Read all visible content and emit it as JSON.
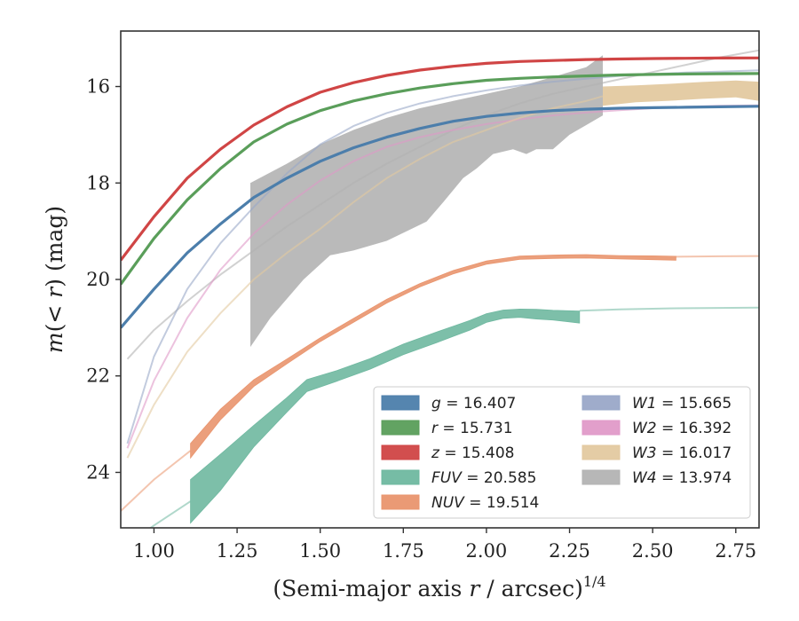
{
  "chart_data": {
    "type": "line",
    "xlabel": "(Semi-major axis r / arcsec)^1/4",
    "xlabel_parts": {
      "main": "(Semi-major axis ",
      "var": "r",
      "rest": " / arcsec)",
      "sup": "1/4"
    },
    "ylabel": "m(< r) (mag)",
    "ylabel_parts": {
      "var": "m",
      "paren_open": "(",
      "lt": "< ",
      "r": "r",
      "paren_close": ")",
      "unit": " (mag)"
    },
    "xlim": [
      0.9,
      2.82
    ],
    "ylim": [
      25.15,
      14.85
    ],
    "y_inverted": true,
    "xticks": [
      1.0,
      1.25,
      1.5,
      1.75,
      2.0,
      2.25,
      2.5,
      2.75
    ],
    "xtick_labels": [
      "1.00",
      "1.25",
      "1.50",
      "1.75",
      "2.00",
      "2.25",
      "2.50",
      "2.75"
    ],
    "yticks": [
      16,
      18,
      20,
      22,
      24
    ],
    "ytick_labels": [
      "16",
      "18",
      "20",
      "22",
      "24"
    ],
    "grid": false,
    "legend_position": "lower-right",
    "series": [
      {
        "name": "g = 16.407",
        "label_var": "g",
        "label_val": " = 16.407",
        "color": "#4c7eab",
        "x": [
          0.9,
          1.0,
          1.1,
          1.2,
          1.3,
          1.4,
          1.5,
          1.6,
          1.7,
          1.8,
          1.9,
          2.0,
          2.1,
          2.2,
          2.3,
          2.4,
          2.5,
          2.6,
          2.7,
          2.82
        ],
        "y": [
          21.0,
          20.2,
          19.45,
          18.85,
          18.3,
          17.9,
          17.55,
          17.27,
          17.05,
          16.87,
          16.72,
          16.62,
          16.55,
          16.5,
          16.47,
          16.45,
          16.44,
          16.43,
          16.42,
          16.41
        ],
        "width": 0.04
      },
      {
        "name": "r = 15.731",
        "label_var": "r",
        "label_val": " = 15.731",
        "color": "#5a9e5a",
        "x": [
          0.9,
          1.0,
          1.1,
          1.2,
          1.3,
          1.4,
          1.5,
          1.6,
          1.7,
          1.8,
          1.9,
          2.0,
          2.1,
          2.2,
          2.3,
          2.4,
          2.5,
          2.6,
          2.7,
          2.82
        ],
        "y": [
          20.1,
          19.15,
          18.35,
          17.7,
          17.15,
          16.78,
          16.5,
          16.3,
          16.15,
          16.03,
          15.94,
          15.87,
          15.83,
          15.8,
          15.78,
          15.76,
          15.75,
          15.74,
          15.735,
          15.731
        ],
        "width": 0.04
      },
      {
        "name": "z = 15.408",
        "label_var": "z",
        "label_val": " = 15.408",
        "color": "#d04545",
        "x": [
          0.9,
          1.0,
          1.1,
          1.2,
          1.3,
          1.4,
          1.5,
          1.6,
          1.7,
          1.8,
          1.9,
          2.0,
          2.1,
          2.2,
          2.3,
          2.4,
          2.5,
          2.6,
          2.7,
          2.82
        ],
        "y": [
          19.6,
          18.7,
          17.9,
          17.3,
          16.8,
          16.42,
          16.12,
          15.92,
          15.77,
          15.66,
          15.58,
          15.52,
          15.48,
          15.46,
          15.44,
          15.43,
          15.42,
          15.415,
          15.41,
          15.408
        ],
        "width": 0.04
      },
      {
        "name": "FUV = 20.585",
        "label_var": "FUV",
        "label_val": " = 20.585",
        "color": "#6fb8a0",
        "x": [
          1.11,
          1.2,
          1.3,
          1.4,
          1.46,
          1.55,
          1.65,
          1.75,
          1.85,
          1.95,
          2.0,
          2.05,
          2.1,
          2.15,
          2.2,
          2.28
        ],
        "y": [
          24.6,
          24.0,
          23.25,
          22.6,
          22.2,
          22.0,
          21.75,
          21.45,
          21.2,
          20.95,
          20.8,
          20.72,
          20.7,
          20.72,
          20.74,
          20.78
        ],
        "width": [
          0.9,
          0.75,
          0.45,
          0.3,
          0.25,
          0.22,
          0.22,
          0.22,
          0.22,
          0.2,
          0.18,
          0.17,
          0.17,
          0.2,
          0.2,
          0.25
        ],
        "ext_x": [
          0.9,
          1.0,
          1.11
        ],
        "ext_y": [
          25.6,
          25.1,
          24.6
        ],
        "tail_x": [
          2.28,
          2.4,
          2.55,
          2.7,
          2.82
        ],
        "tail_y": [
          20.65,
          20.62,
          20.6,
          20.59,
          20.585
        ]
      },
      {
        "name": "NUV = 19.514",
        "label_var": "NUV",
        "label_val": " = 19.514",
        "color": "#e9956e",
        "x": [
          1.11,
          1.2,
          1.3,
          1.4,
          1.5,
          1.6,
          1.7,
          1.8,
          1.9,
          2.0,
          2.1,
          2.2,
          2.3,
          2.4,
          2.5,
          2.57
        ],
        "y": [
          23.55,
          22.8,
          22.15,
          21.7,
          21.25,
          20.85,
          20.45,
          20.12,
          19.85,
          19.65,
          19.55,
          19.53,
          19.52,
          19.54,
          19.55,
          19.56
        ],
        "width": [
          0.3,
          0.22,
          0.14,
          0.1,
          0.08,
          0.08,
          0.08,
          0.07,
          0.07,
          0.07,
          0.07,
          0.07,
          0.07,
          0.07,
          0.08,
          0.08
        ],
        "ext_x": [
          0.9,
          1.0,
          1.11
        ],
        "ext_y": [
          24.8,
          24.15,
          23.55
        ],
        "tail_x": [
          2.57,
          2.7,
          2.82
        ],
        "tail_y": [
          19.53,
          19.52,
          19.514
        ]
      },
      {
        "name": "W1 = 15.665",
        "label_var": "W1",
        "label_val": " = 15.665",
        "color": "#9aa8c8",
        "x": [
          0.92,
          1.0,
          1.1,
          1.2,
          1.3,
          1.4,
          1.5,
          1.6,
          1.7,
          1.8,
          1.9,
          2.0,
          2.1,
          2.2,
          2.3,
          2.4,
          2.5,
          2.6,
          2.7,
          2.82
        ],
        "y": [
          23.4,
          21.6,
          20.2,
          19.25,
          18.5,
          17.8,
          17.2,
          16.82,
          16.55,
          16.35,
          16.2,
          16.08,
          15.98,
          15.9,
          15.84,
          15.78,
          15.74,
          15.71,
          15.69,
          15.665
        ],
        "width": 0.03
      },
      {
        "name": "W2 = 16.392",
        "label_var": "W2",
        "label_val": " = 16.392",
        "color": "#e09ac8",
        "x": [
          0.92,
          1.0,
          1.1,
          1.2,
          1.3,
          1.4,
          1.5,
          1.6,
          1.7,
          1.8,
          1.9,
          2.0,
          2.1,
          2.2,
          2.3,
          2.4,
          2.5,
          2.6,
          2.7,
          2.82
        ],
        "y": [
          23.5,
          22.1,
          20.8,
          19.8,
          19.05,
          18.45,
          17.95,
          17.55,
          17.25,
          17.05,
          16.9,
          16.78,
          16.68,
          16.6,
          16.54,
          16.49,
          16.45,
          16.42,
          16.4,
          16.392
        ],
        "width": 0.03
      },
      {
        "name": "W3 = 16.017",
        "label_var": "W3",
        "label_val": " = 16.017",
        "color": "#e3c9a0",
        "x": [
          0.92,
          1.0,
          1.1,
          1.2,
          1.3,
          1.4,
          1.5,
          1.6,
          1.7,
          1.8,
          1.9,
          2.0,
          2.1,
          2.2,
          2.3,
          2.35,
          2.45,
          2.55,
          2.65,
          2.75,
          2.82
        ],
        "y": [
          23.7,
          22.6,
          21.5,
          20.7,
          20.0,
          19.45,
          18.95,
          18.4,
          17.9,
          17.5,
          17.15,
          16.9,
          16.65,
          16.45,
          16.3,
          16.2,
          16.15,
          16.12,
          16.08,
          16.05,
          16.1
        ],
        "width": [
          0.03,
          0.03,
          0.03,
          0.03,
          0.03,
          0.03,
          0.03,
          0.03,
          0.03,
          0.03,
          0.03,
          0.03,
          0.03,
          0.03,
          0.03,
          0.4,
          0.35,
          0.35,
          0.35,
          0.35,
          0.4
        ]
      },
      {
        "name": "W4 = 13.974",
        "label_var": "W4",
        "label_val": " = 13.974",
        "color": "#b3b3b3",
        "x": [
          0.92,
          1.0,
          1.1,
          1.2,
          1.3,
          1.4,
          1.5,
          1.6,
          1.7,
          1.8,
          1.9,
          2.0,
          2.1,
          2.2,
          2.3,
          2.4,
          2.5,
          2.6,
          2.7,
          2.82
        ],
        "y": [
          21.65,
          21.05,
          20.45,
          19.9,
          19.4,
          18.9,
          18.45,
          18.0,
          17.6,
          17.25,
          16.9,
          16.6,
          16.35,
          16.15,
          16.0,
          15.85,
          15.7,
          15.55,
          15.4,
          15.25
        ],
        "width": 0.03,
        "band_upper_x": [
          1.29,
          1.4,
          1.5,
          1.6,
          1.7,
          1.8,
          1.9,
          2.0,
          2.1,
          2.2,
          2.3,
          2.35
        ],
        "band_upper_y": [
          18.0,
          17.6,
          17.2,
          16.9,
          16.65,
          16.45,
          16.3,
          16.15,
          16.0,
          15.8,
          15.6,
          15.35
        ],
        "band_lower_x": [
          1.29,
          1.35,
          1.45,
          1.53,
          1.6,
          1.7,
          1.82,
          1.87,
          1.93,
          1.97,
          2.02,
          2.08,
          2.12,
          2.15,
          2.2,
          2.25,
          2.3,
          2.35
        ],
        "band_lower_y": [
          21.4,
          20.8,
          20.0,
          19.5,
          19.4,
          19.2,
          18.8,
          18.4,
          17.9,
          17.7,
          17.4,
          17.3,
          17.4,
          17.3,
          17.3,
          17.0,
          16.8,
          16.6
        ]
      }
    ]
  }
}
